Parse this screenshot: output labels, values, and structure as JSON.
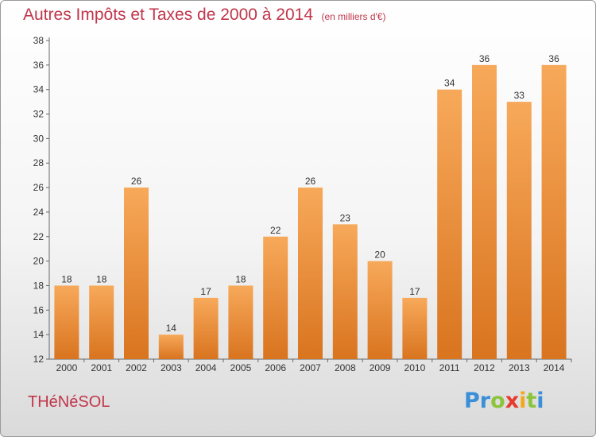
{
  "header": {
    "title": "Autres Impôts et Taxes de 2000 à 2014",
    "unit": "(en milliers d'€)"
  },
  "footer": {
    "commune": "THéNéSOL",
    "logo_letters": [
      "P",
      "r",
      "o",
      "x",
      "i",
      "t",
      "i"
    ],
    "logo_colors": [
      "#3a8fd8",
      "#3a8fd8",
      "#8cc43c",
      "#e8392e",
      "#f2a81d",
      "#8cc43c",
      "#3a8fd8"
    ]
  },
  "colors": {
    "title": "#c0364b",
    "bar_top": "#f7a95a",
    "bar_bottom": "#d9741f",
    "axis": "#666666"
  },
  "chart_data": {
    "type": "bar",
    "categories": [
      "2000",
      "2001",
      "2002",
      "2003",
      "2004",
      "2005",
      "2006",
      "2007",
      "2008",
      "2009",
      "2010",
      "2011",
      "2012",
      "2013",
      "2014"
    ],
    "values": [
      18,
      18,
      26,
      14,
      17,
      18,
      22,
      26,
      23,
      20,
      17,
      34,
      36,
      33,
      36
    ],
    "title": "Autres Impôts et Taxes de 2000 à 2014",
    "subtitle": "(en milliers d'€)",
    "ylim": [
      12,
      38
    ],
    "yticks": [
      12,
      14,
      16,
      18,
      20,
      22,
      24,
      26,
      28,
      30,
      32,
      34,
      36,
      38
    ],
    "grid": false
  }
}
